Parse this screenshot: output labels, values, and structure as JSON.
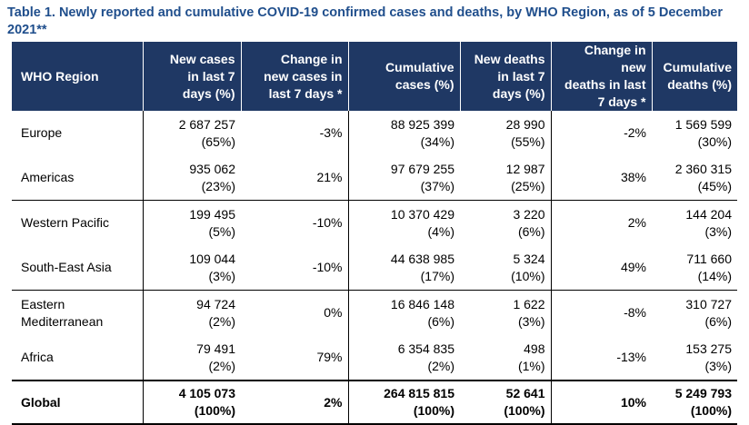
{
  "caption": "Table 1. Newly reported and cumulative COVID-19 confirmed cases and deaths, by WHO Region, as of 5 December 2021**",
  "headers": [
    [
      "WHO Region"
    ],
    [
      "New cases",
      "in  last 7",
      "days (%)"
    ],
    [
      "Change in",
      "new cases in",
      "last 7 days *"
    ],
    [
      "Cumulative",
      "cases (%)"
    ],
    [
      "New deaths",
      "in  last 7",
      "days (%)"
    ],
    [
      "Change in new",
      "deaths in last",
      "7 days *"
    ],
    [
      "Cumulative",
      "deaths (%)"
    ]
  ],
  "rows": [
    {
      "region": [
        "Europe"
      ],
      "new_cases": [
        "2 687 257",
        "(65%)"
      ],
      "change_cases": "-3%",
      "cum_cases": [
        "88 925 399",
        "(34%)"
      ],
      "new_deaths": [
        "28 990",
        "(55%)"
      ],
      "change_deaths": "-2%",
      "cum_deaths": [
        "1 569 599",
        "(30%)"
      ]
    },
    {
      "region": [
        "Americas"
      ],
      "new_cases": [
        "935 062",
        "(23%)"
      ],
      "change_cases": "21%",
      "cum_cases": [
        "97 679 255",
        "(37%)"
      ],
      "new_deaths": [
        "12 987",
        "(25%)"
      ],
      "change_deaths": "38%",
      "cum_deaths": [
        "2 360 315",
        "(45%)"
      ]
    },
    {
      "region": [
        "Western Pacific"
      ],
      "new_cases": [
        "199 495",
        "(5%)"
      ],
      "change_cases": "-10%",
      "cum_cases": [
        "10 370 429",
        "(4%)"
      ],
      "new_deaths": [
        "3 220",
        "(6%)"
      ],
      "change_deaths": "2%",
      "cum_deaths": [
        "144 204",
        "(3%)"
      ]
    },
    {
      "region": [
        "South-East Asia"
      ],
      "new_cases": [
        "109 044",
        "(3%)"
      ],
      "change_cases": "-10%",
      "cum_cases": [
        "44 638 985",
        "(17%)"
      ],
      "new_deaths": [
        "5 324",
        "(10%)"
      ],
      "change_deaths": "49%",
      "cum_deaths": [
        "711 660",
        "(14%)"
      ]
    },
    {
      "region": [
        "Eastern",
        "Mediterranean"
      ],
      "new_cases": [
        "94 724",
        "(2%)"
      ],
      "change_cases": "0%",
      "cum_cases": [
        "16 846 148",
        "(6%)"
      ],
      "new_deaths": [
        "1 622",
        "(3%)"
      ],
      "change_deaths": "-8%",
      "cum_deaths": [
        "310 727",
        "(6%)"
      ]
    },
    {
      "region": [
        "Africa"
      ],
      "new_cases": [
        "79 491",
        "(2%)"
      ],
      "change_cases": "79%",
      "cum_cases": [
        "6 354 835",
        "(2%)"
      ],
      "new_deaths": [
        "498",
        "(1%)"
      ],
      "change_deaths": "-13%",
      "cum_deaths": [
        "153 275",
        "(3%)"
      ]
    }
  ],
  "global": {
    "region": [
      "Global"
    ],
    "new_cases": [
      "4 105 073",
      "(100%)"
    ],
    "change_cases": "2%",
    "cum_cases": [
      "264 815 815",
      "(100%)"
    ],
    "new_deaths": [
      "52 641",
      "(100%)"
    ],
    "change_deaths": "10%",
    "cum_deaths": [
      "5 249 793",
      "(100%)"
    ]
  },
  "colors": {
    "header_bg": "#1f3864",
    "caption": "#1f4e8c"
  }
}
